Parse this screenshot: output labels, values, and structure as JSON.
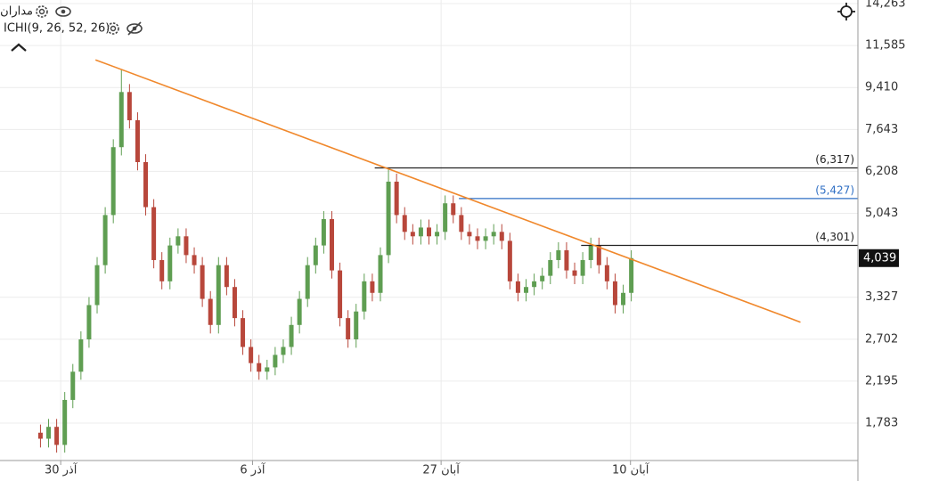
{
  "chart_data": {
    "type": "candlestick",
    "indicators": [
      "مداران",
      "ICHI(9, 26, 52, 26)"
    ],
    "log": true,
    "grid": true,
    "up_color": "#5f9e52",
    "down_color": "#b8473b",
    "x": [
      0,
      1,
      2,
      3,
      4,
      5,
      6,
      7,
      8,
      9,
      10,
      11,
      12,
      13,
      14,
      15,
      16,
      17,
      18,
      19,
      20,
      21,
      22,
      23,
      24,
      25,
      26,
      27,
      28,
      29,
      30,
      31,
      32,
      33,
      34,
      35,
      36,
      37,
      38,
      39,
      40,
      41,
      42,
      43,
      44,
      45,
      46,
      47,
      48,
      49,
      50,
      51,
      52,
      53,
      54,
      55,
      56,
      57,
      58,
      59,
      60,
      61,
      62,
      63,
      64,
      65,
      66,
      67,
      68,
      69,
      70,
      71,
      72,
      73
    ],
    "open": [
      1700,
      1650,
      1750,
      1600,
      2000,
      2300,
      2700,
      3200,
      3900,
      5000,
      7000,
      9200,
      8000,
      6500,
      5200,
      4000,
      3600,
      4300,
      4500,
      4100,
      3900,
      3300,
      2900,
      3900,
      3500,
      3000,
      2600,
      2400,
      2300,
      2350,
      2500,
      2600,
      2900,
      3300,
      3900,
      4300,
      4900,
      3800,
      3000,
      2700,
      3100,
      3600,
      3400,
      4100,
      5900,
      5000,
      4600,
      4500,
      4700,
      4500,
      4600,
      5300,
      5000,
      4600,
      4500,
      4400,
      4500,
      4600,
      4400,
      3600,
      3400,
      3500,
      3600,
      3700,
      4000,
      4200,
      3800,
      3700,
      4000,
      4300,
      3900,
      3600,
      3200,
      3400
    ],
    "high": [
      1770,
      1820,
      1820,
      2080,
      2390,
      2810,
      3330,
      4060,
      5200,
      7280,
      10300,
      9570,
      8320,
      6760,
      5410,
      4160,
      4470,
      4680,
      4680,
      4260,
      4060,
      3430,
      4060,
      4060,
      3640,
      3120,
      2700,
      2500,
      2440,
      2600,
      2700,
      3020,
      3430,
      4060,
      4470,
      5100,
      5100,
      3950,
      3120,
      3220,
      3740,
      3740,
      4260,
      6320,
      6140,
      5200,
      4780,
      4890,
      4890,
      4780,
      5510,
      5510,
      5200,
      4780,
      4680,
      4680,
      4780,
      4780,
      4580,
      3740,
      3640,
      3740,
      3850,
      4160,
      4370,
      4370,
      3950,
      4160,
      4470,
      4470,
      4060,
      3740,
      3540,
      4200
    ],
    "low": [
      1580,
      1580,
      1540,
      1540,
      1920,
      2210,
      2590,
      3070,
      3740,
      4800,
      6720,
      7680,
      6240,
      4990,
      3840,
      3460,
      3460,
      4130,
      3940,
      3740,
      3170,
      2780,
      2780,
      3360,
      2880,
      2500,
      2300,
      2210,
      2210,
      2260,
      2400,
      2500,
      2780,
      3170,
      3740,
      4130,
      3650,
      2880,
      2590,
      2590,
      2980,
      3260,
      3260,
      3940,
      4800,
      4420,
      4320,
      4320,
      4320,
      4320,
      4420,
      4800,
      4420,
      4320,
      4220,
      4220,
      4320,
      4220,
      3460,
      3260,
      3260,
      3360,
      3460,
      3550,
      3840,
      3650,
      3550,
      3550,
      3840,
      3740,
      3460,
      3070,
      3070,
      3260
    ],
    "close": [
      1650,
      1750,
      1600,
      2000,
      2300,
      2700,
      3200,
      3900,
      5000,
      7000,
      9200,
      8000,
      6500,
      5200,
      4000,
      3600,
      4300,
      4500,
      4100,
      3900,
      3300,
      2900,
      3900,
      3500,
      3000,
      2600,
      2400,
      2300,
      2350,
      2500,
      2600,
      2900,
      3300,
      3900,
      4300,
      4900,
      3800,
      3000,
      2700,
      3100,
      3600,
      3400,
      4100,
      5900,
      5000,
      4600,
      4500,
      4700,
      4500,
      4600,
      5300,
      5000,
      4600,
      4500,
      4400,
      4500,
      4600,
      4400,
      3600,
      3400,
      3500,
      3600,
      3700,
      4000,
      4200,
      3800,
      3700,
      4000,
      4300,
      3900,
      3600,
      3200,
      3400,
      4039
    ],
    "xlim": [
      -5,
      101
    ],
    "xticks": [
      {
        "value": 2.5,
        "label": "30 آذر"
      },
      {
        "value": 26.2,
        "label": "6 آذر"
      },
      {
        "value": 49.5,
        "label": "27 آبان"
      },
      {
        "value": 72.9,
        "label": "10 آبان"
      }
    ],
    "ylim": [
      1481,
      14518
    ],
    "yticks": [
      {
        "value": 14263,
        "label": "14,263"
      },
      {
        "value": 11585,
        "label": "11,585"
      },
      {
        "value": 9410,
        "label": "9,410"
      },
      {
        "value": 7643,
        "label": "7,643"
      },
      {
        "value": 6208,
        "label": "6,208"
      },
      {
        "value": 5043,
        "label": "5,043"
      },
      {
        "value": 3327,
        "label": "3,327"
      },
      {
        "value": 2702,
        "label": "2,702"
      },
      {
        "value": 2195,
        "label": "2,195"
      },
      {
        "value": 1783,
        "label": "1,783"
      }
    ],
    "levels": [
      {
        "value": 6317,
        "label": "(6,317)",
        "color": "#222222",
        "x_start": 41.3
      },
      {
        "value": 5427,
        "label": "(5,427)",
        "color": "#2f6fc4",
        "x_start": 51.7
      },
      {
        "value": 4301,
        "label": "(4,301)",
        "color": "#222222",
        "x_start": 66.8
      }
    ],
    "trendline": {
      "x": [
        6.8,
        93.9
      ],
      "y": [
        10790,
        2940
      ],
      "color": "#f0882c"
    },
    "last_price": {
      "value": 4039,
      "label": "4,039"
    }
  }
}
